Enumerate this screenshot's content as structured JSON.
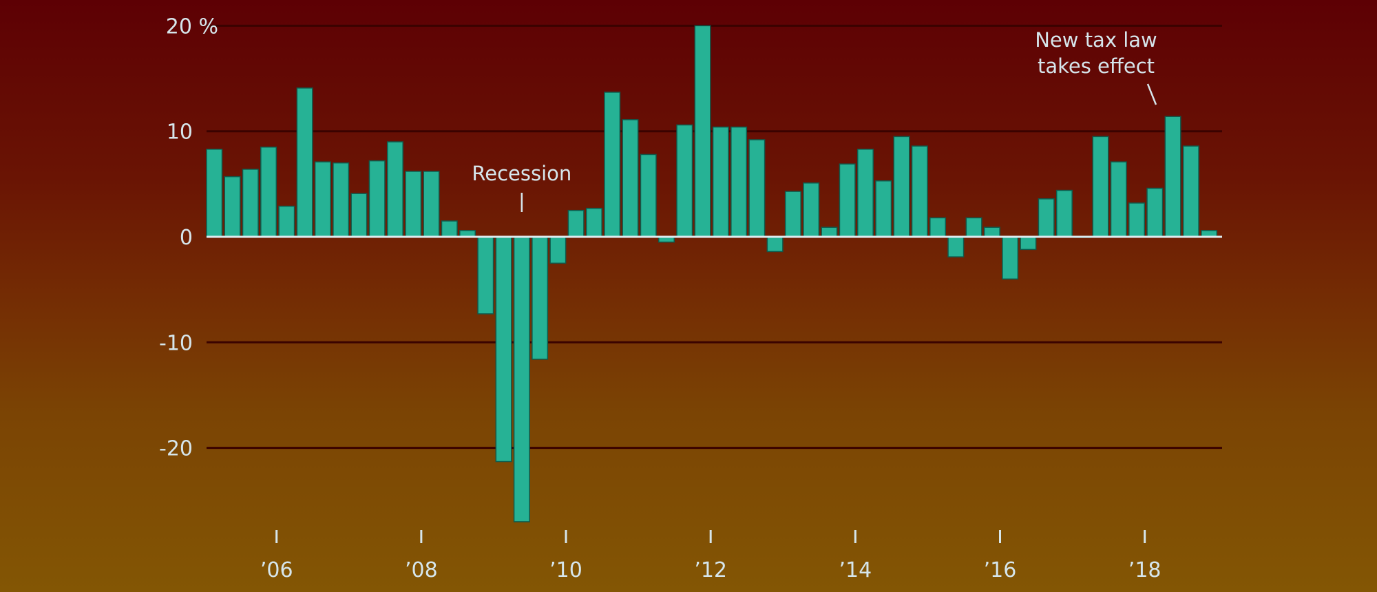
{
  "chart_data": {
    "type": "bar",
    "y_unit_label": "20 %",
    "y_ticks": [
      20,
      10,
      0,
      -10,
      -20
    ],
    "y_tick_labels": [
      "20 %",
      "10",
      "0",
      "-10",
      "-20"
    ],
    "ylim": [
      -27.5,
      20.5
    ],
    "x_start": "2005 Q1",
    "frequency": "quarterly",
    "x_tick_years": [
      2006,
      2008,
      2010,
      2012,
      2014,
      2016,
      2018
    ],
    "x_tick_labels": [
      "’06",
      "’08",
      "’10",
      "’12",
      "’14",
      "’16",
      "’18"
    ],
    "values": [
      8.3,
      5.7,
      6.4,
      8.5,
      2.9,
      14.1,
      7.1,
      7.0,
      4.1,
      7.2,
      9.0,
      6.2,
      6.2,
      1.5,
      0.6,
      -7.3,
      -21.3,
      -27.0,
      -11.6,
      -2.5,
      2.5,
      2.7,
      13.7,
      11.1,
      7.8,
      -0.5,
      10.6,
      20.0,
      10.4,
      10.4,
      9.2,
      -1.4,
      4.3,
      5.1,
      0.9,
      6.9,
      8.3,
      5.3,
      9.5,
      8.6,
      1.8,
      -1.9,
      1.8,
      0.9,
      -4.0,
      -1.2,
      3.6,
      4.4,
      0.0,
      9.5,
      7.1,
      3.2,
      4.6,
      11.4,
      8.6,
      0.6
    ],
    "annotations": [
      {
        "text": "Recession",
        "quarter_index": 17
      },
      {
        "text": [
          "New tax law",
          "takes effect"
        ],
        "quarter_index": 52
      }
    ],
    "grid": true
  },
  "colors": {
    "bar_fill": "#26b295",
    "bar_stroke": "#0f5a4c",
    "gridline": "#3a0200",
    "zero_line": "#dcecef",
    "text": "#d6e6ec"
  }
}
